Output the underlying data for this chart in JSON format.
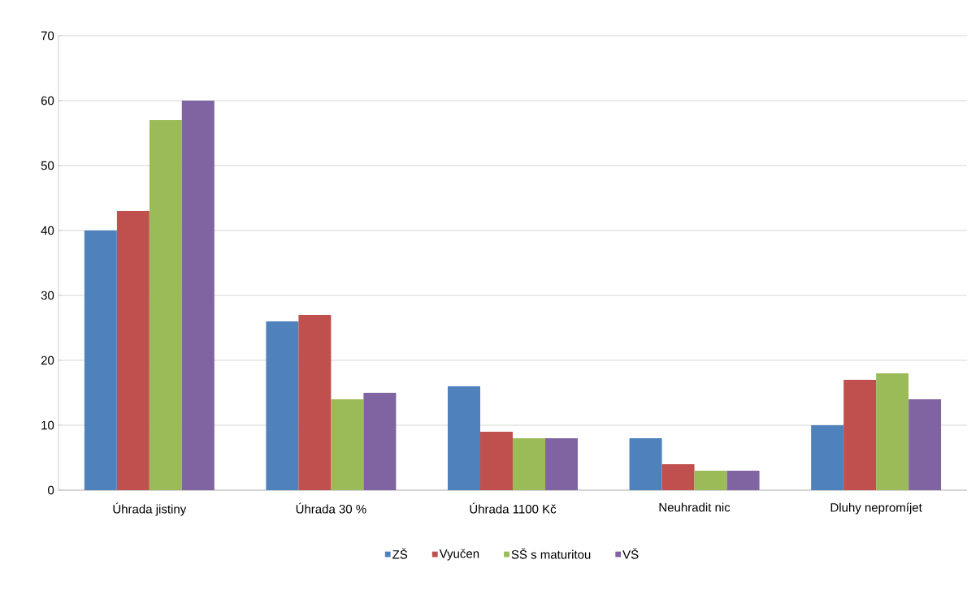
{
  "chart_data": {
    "type": "bar",
    "categories": [
      "Úhrada jistiny",
      "Úhrada 30 %",
      "Úhrada 1100 Kč",
      "Neuhradit nic",
      "Dluhy nepromíjet"
    ],
    "series": [
      {
        "name": "ZŠ",
        "color": "#4f81bd",
        "values": [
          40,
          26,
          16,
          8,
          10
        ]
      },
      {
        "name": "Vyučen",
        "color": "#c0504d",
        "values": [
          43,
          27,
          9,
          4,
          17
        ]
      },
      {
        "name": "SŠ s maturitou",
        "color": "#9bbb59",
        "values": [
          57,
          14,
          8,
          3,
          18
        ]
      },
      {
        "name": "VŠ",
        "color": "#8064a2",
        "values": [
          60,
          15,
          8,
          3,
          14
        ]
      }
    ],
    "ylim": [
      0,
      70
    ],
    "yticks": [
      0,
      10,
      20,
      30,
      40,
      50,
      60,
      70
    ],
    "grid": "y",
    "legend": "bottom"
  }
}
